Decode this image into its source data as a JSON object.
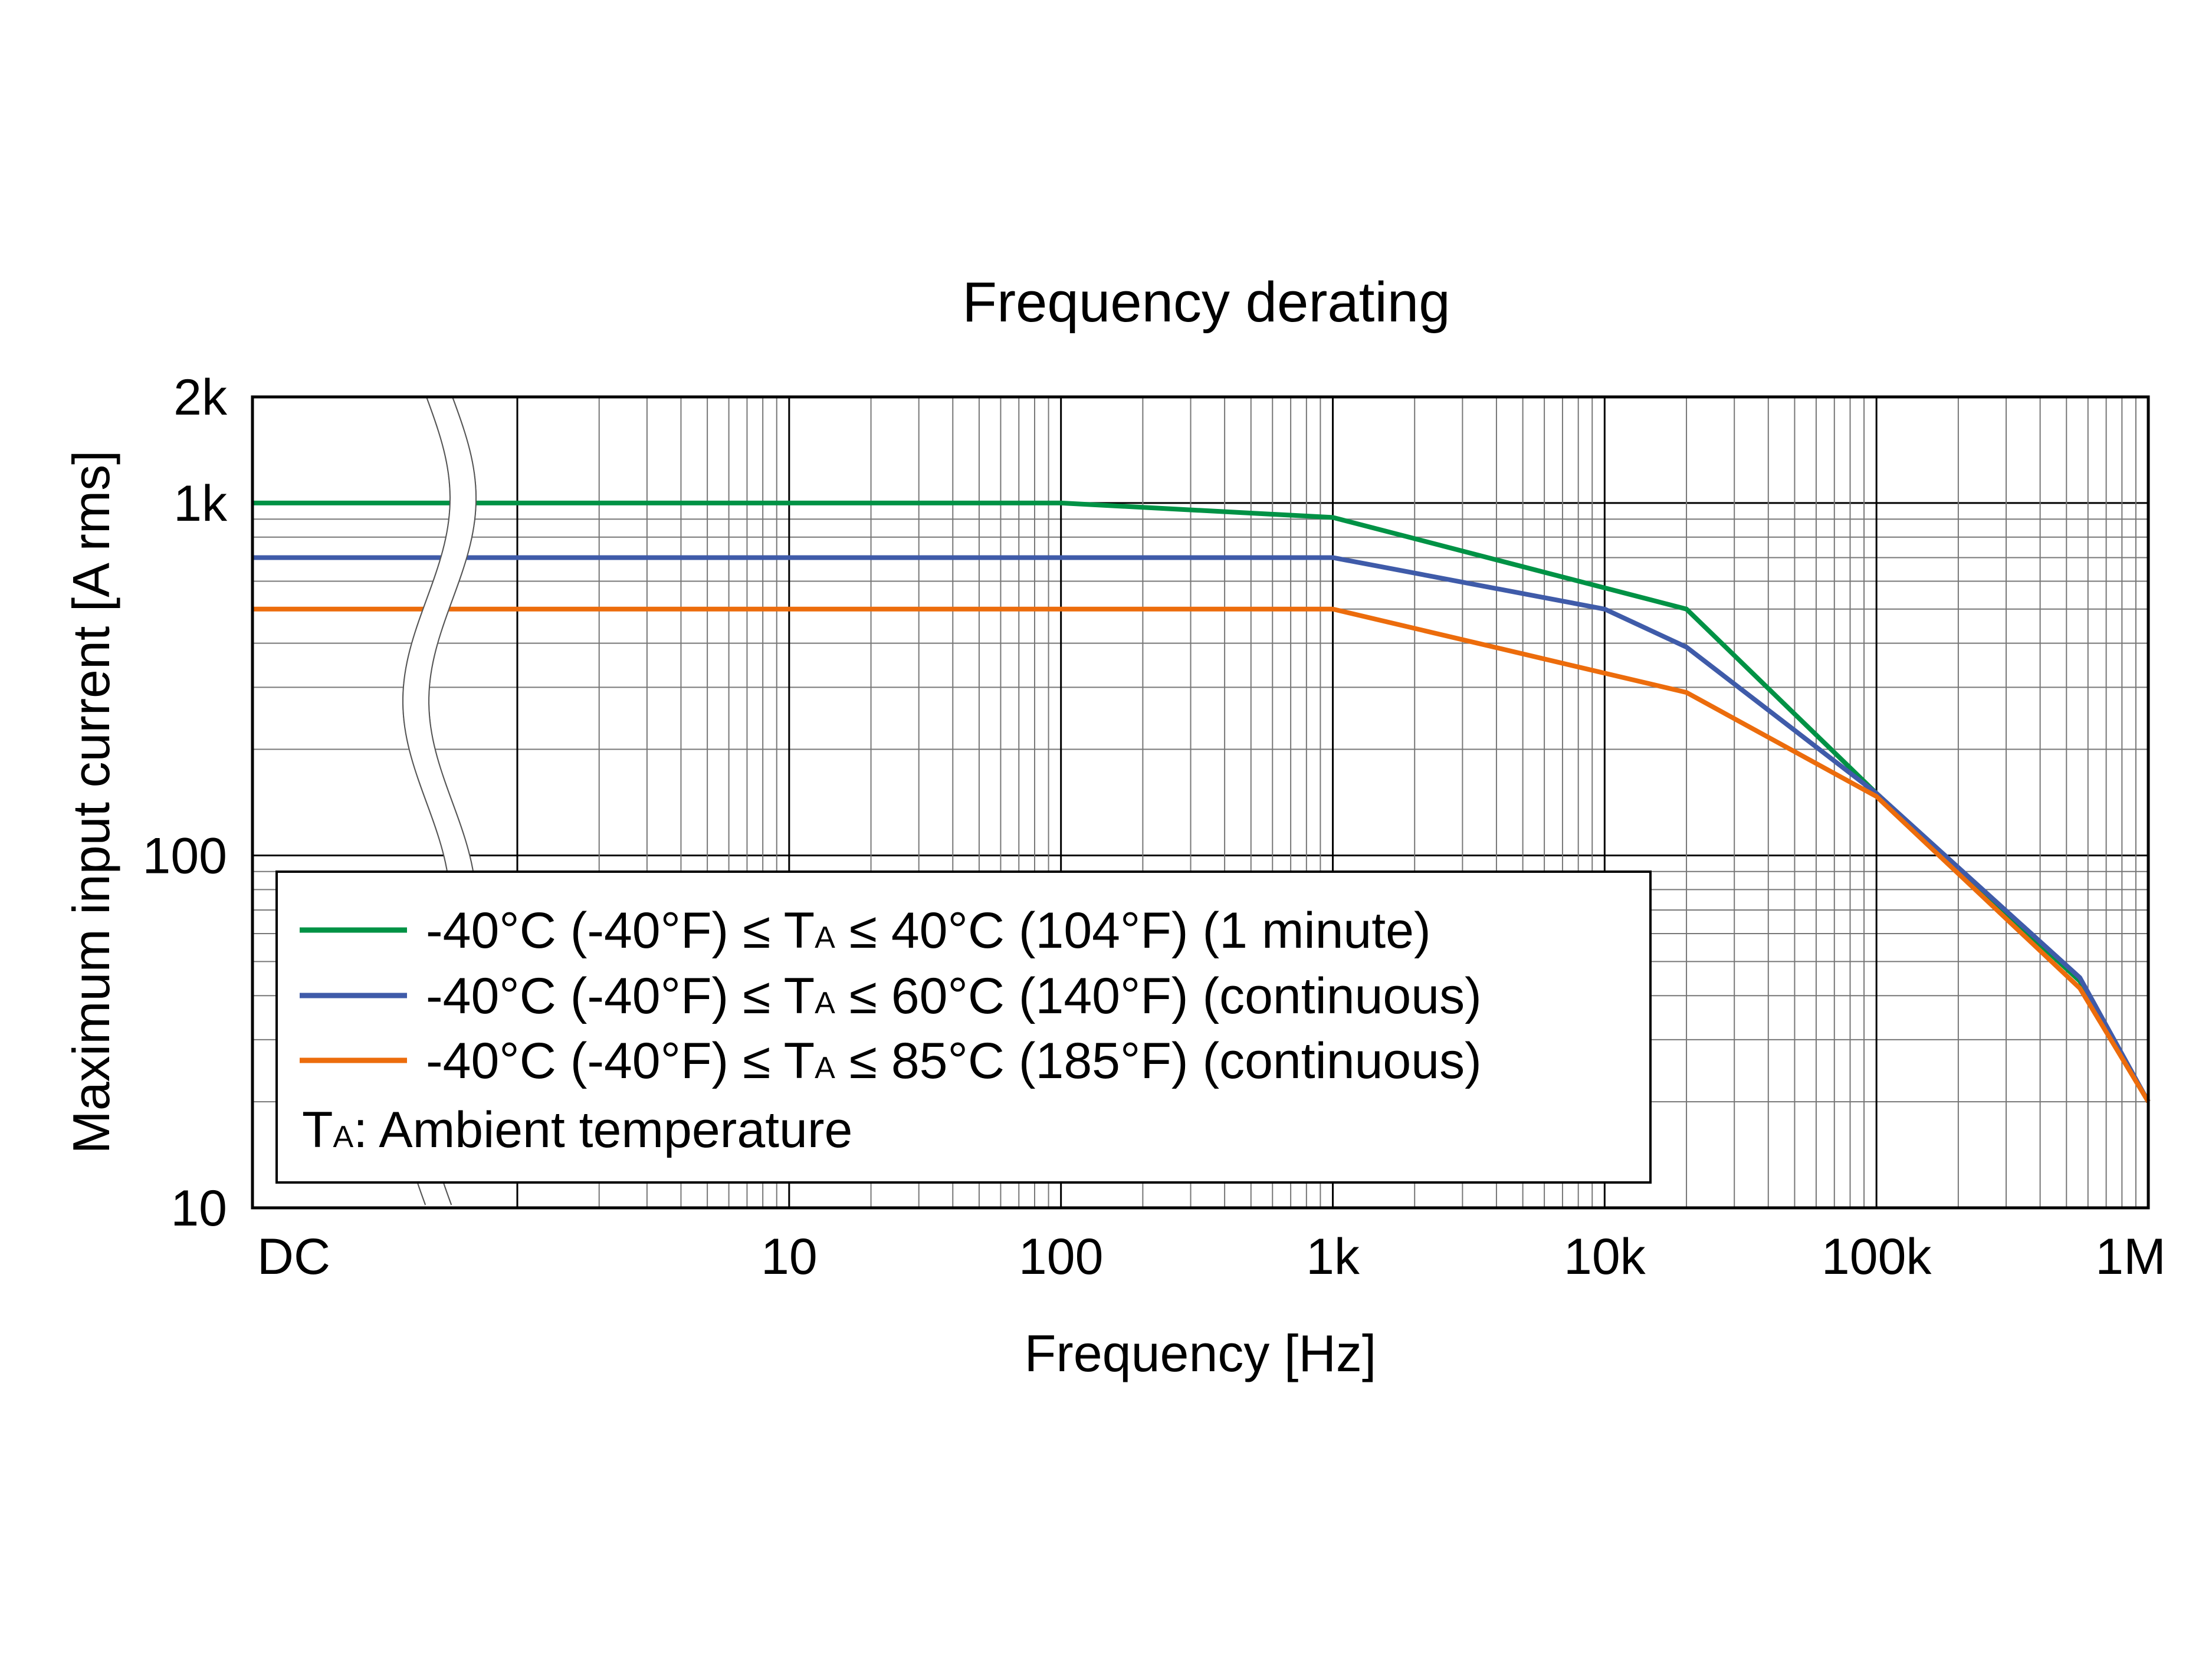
{
  "chart_data": {
    "type": "line",
    "title": "Frequency derating",
    "xlabel": "Frequency [Hz]",
    "ylabel": "Maximum input current [A rms]",
    "x_scale": "log",
    "y_scale": "log",
    "x_axis_break": "DC",
    "xlim": [
      "DC",
      1000000
    ],
    "ylim": [
      10,
      2000
    ],
    "grid": true,
    "x_ticks": [
      {
        "value": "DC",
        "label": "DC"
      },
      {
        "value": 10,
        "label": "10"
      },
      {
        "value": 100,
        "label": "100"
      },
      {
        "value": 1000,
        "label": "1k"
      },
      {
        "value": 10000,
        "label": "10k"
      },
      {
        "value": 100000,
        "label": "100k"
      },
      {
        "value": 1000000,
        "label": "1M"
      }
    ],
    "y_ticks": [
      {
        "value": 10,
        "label": "10"
      },
      {
        "value": 100,
        "label": "100"
      },
      {
        "value": 1000,
        "label": "1k"
      },
      {
        "value": 2000,
        "label": "2k"
      }
    ],
    "legend_placement": "bottom-left",
    "series": [
      {
        "name_prefix": "-40°C (-40°F) ≤ T",
        "name_sub": "A",
        "name_suffix": " ≤ 40°C (104°F) (1 minute)",
        "color": "#009245",
        "points": [
          [
            "DC",
            1000
          ],
          [
            100,
            1000
          ],
          [
            1000,
            910
          ],
          [
            20000,
            500
          ],
          [
            100000,
            150
          ],
          [
            560000,
            44
          ],
          [
            1000000,
            20
          ]
        ]
      },
      {
        "name_prefix": "-40°C (-40°F) ≤ T",
        "name_sub": "A",
        "name_suffix": " ≤ 60°C (140°F) (continuous)",
        "color": "#3f5ba9",
        "points": [
          [
            "DC",
            700
          ],
          [
            1000,
            700
          ],
          [
            10000,
            500
          ],
          [
            20000,
            390
          ],
          [
            100000,
            150
          ],
          [
            560000,
            45
          ],
          [
            1000000,
            20
          ]
        ]
      },
      {
        "name_prefix": "-40°C (-40°F) ≤ T",
        "name_sub": "A",
        "name_suffix": " ≤ 85°C (185°F) (continuous)",
        "color": "#ec6c0c",
        "points": [
          [
            "DC",
            500
          ],
          [
            1000,
            500
          ],
          [
            20000,
            290
          ],
          [
            100000,
            147
          ],
          [
            560000,
            42
          ],
          [
            1000000,
            20
          ]
        ]
      }
    ],
    "note": {
      "prefix": "T",
      "sub": "A",
      "suffix": ": Ambient temperature"
    }
  }
}
